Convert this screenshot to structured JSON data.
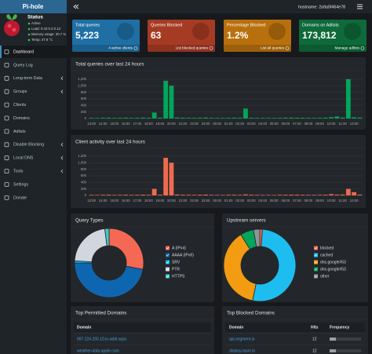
{
  "sidebar": {
    "logo": "Pi-hole",
    "status": {
      "title": "Status",
      "state": "Active",
      "load": "Load:  0.43  0.3  0.13",
      "memory": "Memory usage:  30.7 %",
      "temp": "Temp:  47.8 °C"
    },
    "menu": [
      "Dashboard",
      "Query Log",
      "Long-term Data",
      "Groups",
      "Clients",
      "Domains",
      "Adlists",
      "Disable Blocking",
      "Local DNS",
      "Tools",
      "Settings",
      "Donate"
    ]
  },
  "header": {
    "hostname": "hostname: 2a9a5f464e78"
  },
  "stats": [
    {
      "title": "Total queries",
      "value": "5,223",
      "link": "4 active clients",
      "color": "#1f6fa5"
    },
    {
      "title": "Queries Blocked",
      "value": "63",
      "link": "List blocked queries",
      "color": "#a63b24"
    },
    {
      "title": "Percentage Blocked",
      "value": "1.2%",
      "link": "List all queries",
      "color": "#b8700d"
    },
    {
      "title": "Domains on Adlists",
      "value": "173,812",
      "link": "Manage adlists",
      "color": "#0e6a3a"
    }
  ],
  "chart_data": [
    {
      "type": "bar",
      "title": "Total queries over last 24 hours",
      "categories": [
        "13:00",
        null,
        "14:00",
        null,
        "15:00",
        null,
        "16:00",
        null,
        "17:00",
        null,
        "18:00",
        null,
        "19:00",
        null,
        "20:00",
        null,
        "21:00",
        null,
        "22:00",
        null,
        "23:00",
        null,
        "00:00",
        null,
        "01:00",
        null,
        "02:00",
        null,
        "03:00",
        null,
        "04:00",
        null,
        "05:00",
        null,
        "06:00",
        null,
        "07:00",
        null,
        "08:00",
        null,
        "09:00",
        null,
        "10:00",
        null,
        "11:00",
        null,
        "12:00",
        null
      ],
      "series": [
        {
          "color": "#00a65a",
          "values": [
            20,
            18,
            22,
            25,
            19,
            21,
            24,
            20,
            23,
            26,
            22,
            180,
            25,
            1150,
            1000,
            30,
            24,
            22,
            21,
            25,
            28,
            20,
            19,
            18,
            22,
            24,
            21,
            300,
            23,
            20,
            19,
            18,
            17,
            22,
            24,
            26,
            25,
            23,
            21,
            20,
            22,
            24,
            40,
            60,
            30,
            1200,
            35,
            28
          ]
        },
        {
          "color": "#dd4b39",
          "values": [
            1,
            0,
            2,
            1,
            0,
            1,
            2,
            1,
            1,
            2,
            1,
            3,
            1,
            6,
            5,
            1,
            2,
            1,
            0,
            1,
            2,
            1,
            1,
            0,
            1,
            2,
            1,
            3,
            1,
            1,
            0,
            1,
            1,
            2,
            1,
            0,
            1,
            2,
            1,
            1,
            1,
            2,
            1,
            2,
            1,
            4,
            2,
            1
          ]
        }
      ],
      "stacked": true,
      "ylim": [
        0,
        1200
      ],
      "yticks": [
        0,
        200,
        400,
        600,
        800,
        {
          "value": 1000,
          "label": "1,000"
        },
        {
          "value": 1200,
          "label": "1,200"
        }
      ],
      "grid": true
    },
    {
      "type": "bar",
      "title": "Client activity over last 24 hours",
      "categories": [
        "13:00",
        null,
        "14:00",
        null,
        "15:00",
        null,
        "16:00",
        null,
        "17:00",
        null,
        "18:00",
        null,
        "19:00",
        null,
        "20:00",
        null,
        "21:00",
        null,
        "22:00",
        null,
        "23:00",
        null,
        "00:00",
        null,
        "01:00",
        null,
        "02:00",
        null,
        "03:00",
        null,
        "04:00",
        null,
        "05:00",
        null,
        "06:00",
        null,
        "07:00",
        null,
        "08:00",
        null,
        "09:00",
        null,
        "10:00",
        null,
        "11:00",
        null,
        "12:00",
        null
      ],
      "series": [
        {
          "color": "#ef6a4f",
          "values": [
            18,
            16,
            20,
            23,
            17,
            19,
            22,
            18,
            21,
            24,
            20,
            200,
            23,
            1150,
            1000,
            28,
            22,
            20,
            19,
            23,
            26,
            18,
            17,
            16,
            20,
            22,
            19,
            30,
            21,
            18,
            17,
            16,
            15,
            20,
            22,
            24,
            23,
            21,
            19,
            18,
            20,
            22,
            40,
            25,
            28,
            200,
            100,
            26
          ]
        }
      ],
      "stacked": true,
      "ylim": [
        0,
        1200
      ],
      "yticks": [
        0,
        200,
        400,
        600,
        800,
        {
          "value": 1000,
          "label": "1,000"
        },
        {
          "value": 1200,
          "label": "1,200"
        }
      ],
      "grid": true
    },
    {
      "type": "doughnut",
      "title": "Query Types",
      "categories": [
        "A (IPv4)",
        "AAAA (IPv6)",
        "SRV",
        "PTR",
        "HTTPS"
      ],
      "values": [
        28,
        47,
        1,
        22,
        2
      ],
      "colors": [
        "#f56954",
        "#0f66b0",
        "#00c0ef",
        "#d2d6de",
        "#39cccc"
      ]
    },
    {
      "type": "doughnut",
      "title": "Upstream servers",
      "categories": [
        "blocked",
        "cached",
        "dns.google#53",
        "dns.google#53",
        "other"
      ],
      "values": [
        1.2,
        52,
        38,
        6,
        2.8
      ],
      "colors": [
        "#f56954",
        "#1ebdf0",
        "#f39c12",
        "#00a65a",
        "#8f9499"
      ]
    }
  ],
  "tables": [
    {
      "title": "Top Permitted Domains",
      "columns": [
        "Domain"
      ],
      "rows": [
        [
          "097.224.255.10.in-addr.arpa"
        ],
        [
          "weather-data.apple.com"
        ]
      ]
    },
    {
      "title": "Top Blocked Domains",
      "columns": [
        "Domain",
        "Hits",
        "Frequency"
      ],
      "rows": [
        [
          "api.segment.io",
          12
        ],
        [
          "display.rasm.tv",
          12
        ]
      ]
    }
  ]
}
